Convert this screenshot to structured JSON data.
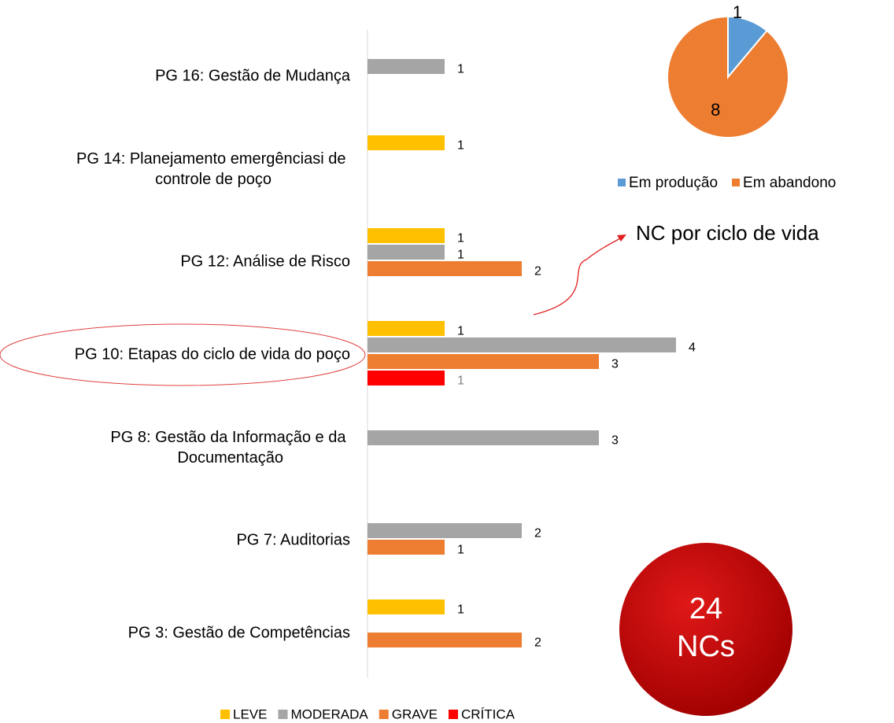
{
  "chart_data": [
    {
      "type": "bar",
      "categories": [
        "PG 16: Gestão de Mudança",
        "PG 14: Planejamento emergênciasi de controle de poço",
        "PG 12: Análise de Risco",
        "PG 10: Etapas do ciclo de vida do poço",
        "PG 8: Gestão da Informação e da Documentação",
        "PG 7: Auditorias",
        "PG 3: Gestão de Competências"
      ],
      "series": [
        {
          "name": "LEVE",
          "color": "#FFC000",
          "values": [
            null,
            1,
            1,
            1,
            null,
            null,
            1
          ]
        },
        {
          "name": "MODERADA",
          "color": "#A5A5A5",
          "values": [
            1,
            null,
            1,
            4,
            3,
            2,
            null
          ]
        },
        {
          "name": "GRAVE",
          "color": "#ED7D31",
          "values": [
            null,
            null,
            2,
            3,
            null,
            1,
            2
          ]
        },
        {
          "name": "CRÍTICA",
          "color": "#FF0000",
          "values": [
            null,
            null,
            null,
            1,
            null,
            null,
            null
          ]
        }
      ],
      "xlim": [
        0,
        4.5
      ]
    },
    {
      "type": "pie",
      "categories": [
        "Em produção",
        "Em abandono"
      ],
      "values": [
        1,
        8
      ],
      "colors": [
        "#5B9BD5",
        "#ED7D31"
      ]
    }
  ],
  "annotation": "NC por ciclo de vida",
  "badge": {
    "count": 24,
    "unit": "NCs"
  }
}
